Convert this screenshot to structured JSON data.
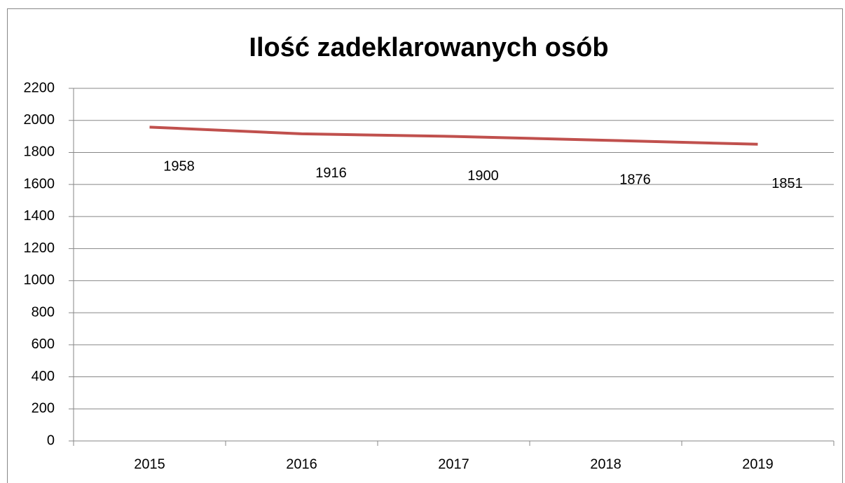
{
  "chart_data": {
    "type": "line",
    "title": "Ilość zadeklarowanych osób",
    "categories": [
      "2015",
      "2016",
      "2017",
      "2018",
      "2019"
    ],
    "series": [
      {
        "name": "Ilość zadeklarowanych osób",
        "color": "#c0504d",
        "values": [
          1958,
          1916,
          1900,
          1876,
          1851
        ]
      }
    ],
    "ylim": [
      0,
      2200
    ],
    "yticks": [
      0,
      200,
      400,
      600,
      800,
      1000,
      1200,
      1400,
      1600,
      1800,
      2000,
      2200
    ],
    "grid": true
  }
}
